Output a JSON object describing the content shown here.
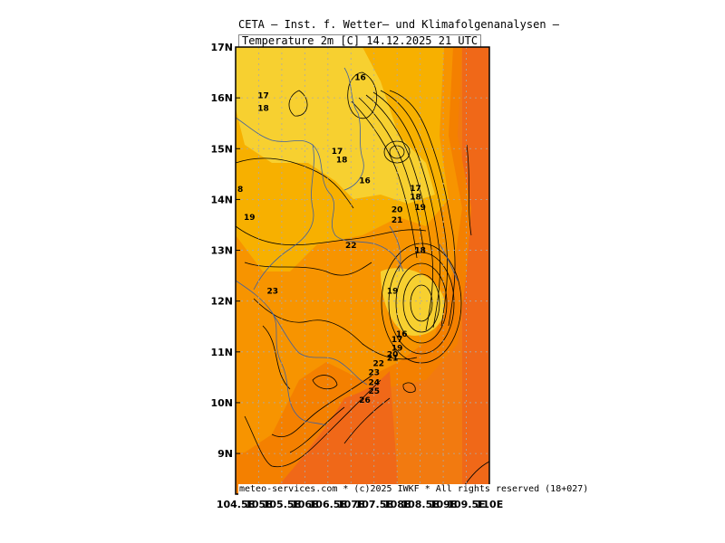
{
  "header": {
    "title": "CETA — Inst. f. Wetter— und Klimafolgenanalysen —",
    "subtitle": "Temperature 2m [C]  14.12.2025 21 UTC"
  },
  "footer": "meteo-services.com * (c)2025 IWKF * All rights reserved (18+027)",
  "map": {
    "lon_range": [
      104.5,
      110.0
    ],
    "lat_range": [
      8.2,
      17.0
    ],
    "lat_labels": [
      "17N",
      "16N",
      "15N",
      "14N",
      "13N",
      "12N",
      "11N",
      "10N",
      "9N"
    ],
    "lat_values": [
      17,
      16,
      15,
      14,
      13,
      12,
      11,
      10,
      9
    ],
    "lon_labels": [
      "104.5E",
      "105E",
      "105.5E",
      "106E",
      "106.5E",
      "107E",
      "107.5E",
      "108E",
      "108.5E",
      "109E",
      "109.5E",
      "110E"
    ],
    "lon_values": [
      104.5,
      105,
      105.5,
      106,
      106.5,
      107,
      107.5,
      108,
      108.5,
      109,
      109.5,
      110
    ],
    "colors": {
      "t16": "#f7d030",
      "t18": "#f7b000",
      "t20": "#f79400",
      "t24": "#f48000",
      "t26": "#f06818",
      "sea": "#f27a10",
      "border": "#4060a0",
      "grid": "#aaaaaa",
      "contour": "#000000"
    },
    "contour_labels": [
      {
        "text": "16",
        "lon": 107.2,
        "lat": 16.4
      },
      {
        "text": "17",
        "lon": 105.1,
        "lat": 16.05
      },
      {
        "text": "18",
        "lon": 105.1,
        "lat": 15.8
      },
      {
        "text": "17",
        "lon": 106.7,
        "lat": 14.95
      },
      {
        "text": "18",
        "lon": 106.8,
        "lat": 14.78
      },
      {
        "text": "16",
        "lon": 107.3,
        "lat": 14.37
      },
      {
        "text": "8",
        "lon": 104.6,
        "lat": 14.2
      },
      {
        "text": "17",
        "lon": 108.4,
        "lat": 14.22
      },
      {
        "text": "18",
        "lon": 108.4,
        "lat": 14.05
      },
      {
        "text": "19",
        "lon": 108.5,
        "lat": 13.85
      },
      {
        "text": "20",
        "lon": 108.0,
        "lat": 13.8
      },
      {
        "text": "21",
        "lon": 108.0,
        "lat": 13.6
      },
      {
        "text": "19",
        "lon": 104.8,
        "lat": 13.65
      },
      {
        "text": "22",
        "lon": 107.0,
        "lat": 13.1
      },
      {
        "text": "18",
        "lon": 108.5,
        "lat": 13.0
      },
      {
        "text": "23",
        "lon": 105.3,
        "lat": 12.2
      },
      {
        "text": "19",
        "lon": 107.9,
        "lat": 12.2
      },
      {
        "text": "16",
        "lon": 108.1,
        "lat": 11.35
      },
      {
        "text": "17",
        "lon": 108.0,
        "lat": 11.25
      },
      {
        "text": "19",
        "lon": 108.0,
        "lat": 11.08
      },
      {
        "text": "20",
        "lon": 107.9,
        "lat": 10.95
      },
      {
        "text": "21",
        "lon": 107.9,
        "lat": 10.88
      },
      {
        "text": "22",
        "lon": 107.6,
        "lat": 10.77
      },
      {
        "text": "23",
        "lon": 107.5,
        "lat": 10.6
      },
      {
        "text": "24",
        "lon": 107.5,
        "lat": 10.4
      },
      {
        "text": "25",
        "lon": 107.5,
        "lat": 10.23
      },
      {
        "text": "26",
        "lon": 107.3,
        "lat": 10.05
      }
    ]
  }
}
